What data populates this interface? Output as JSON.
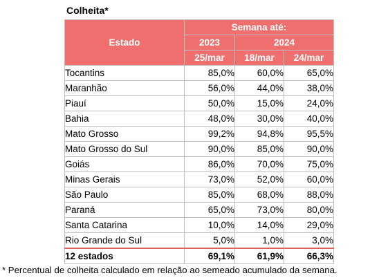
{
  "title": "Colheita*",
  "header": {
    "estado": "Estado",
    "semana_ate": "Semana até:",
    "years": [
      "2023",
      "2024"
    ],
    "dates": [
      "25/mar",
      "18/mar",
      "24/mar"
    ]
  },
  "rows": [
    {
      "estado": "Tocantins",
      "values": [
        "85,0%",
        "60,0%",
        "65,0%"
      ]
    },
    {
      "estado": "Maranhão",
      "values": [
        "56,0%",
        "44,0%",
        "38,0%"
      ]
    },
    {
      "estado": "Piauí",
      "values": [
        "50,0%",
        "15,0%",
        "24,0%"
      ]
    },
    {
      "estado": "Bahia",
      "values": [
        "48,0%",
        "30,0%",
        "40,0%"
      ]
    },
    {
      "estado": "Mato Grosso",
      "values": [
        "99,2%",
        "94,8%",
        "95,5%"
      ]
    },
    {
      "estado": "Mato Grosso do Sul",
      "values": [
        "90,0%",
        "85,0%",
        "90,0%"
      ]
    },
    {
      "estado": "Goiás",
      "values": [
        "86,0%",
        "70,0%",
        "75,0%"
      ]
    },
    {
      "estado": "Minas Gerais",
      "values": [
        "73,0%",
        "52,0%",
        "60,0%"
      ]
    },
    {
      "estado": "São Paulo",
      "values": [
        "85,0%",
        "68,0%",
        "88,0%"
      ]
    },
    {
      "estado": "Paraná",
      "values": [
        "65,0%",
        "73,0%",
        "80,0%"
      ]
    },
    {
      "estado": "Santa Catarina",
      "values": [
        "10,0%",
        "14,0%",
        "29,0%"
      ]
    },
    {
      "estado": "Rio Grande do Sul",
      "values": [
        "5,0%",
        "1,0%",
        "3,0%"
      ]
    }
  ],
  "total": {
    "estado": "12 estados",
    "values": [
      "69,1%",
      "61,9%",
      "66,3%"
    ]
  },
  "footnote": "* Percentual de colheita calculado em relação ao semeado acumulado da semana."
}
